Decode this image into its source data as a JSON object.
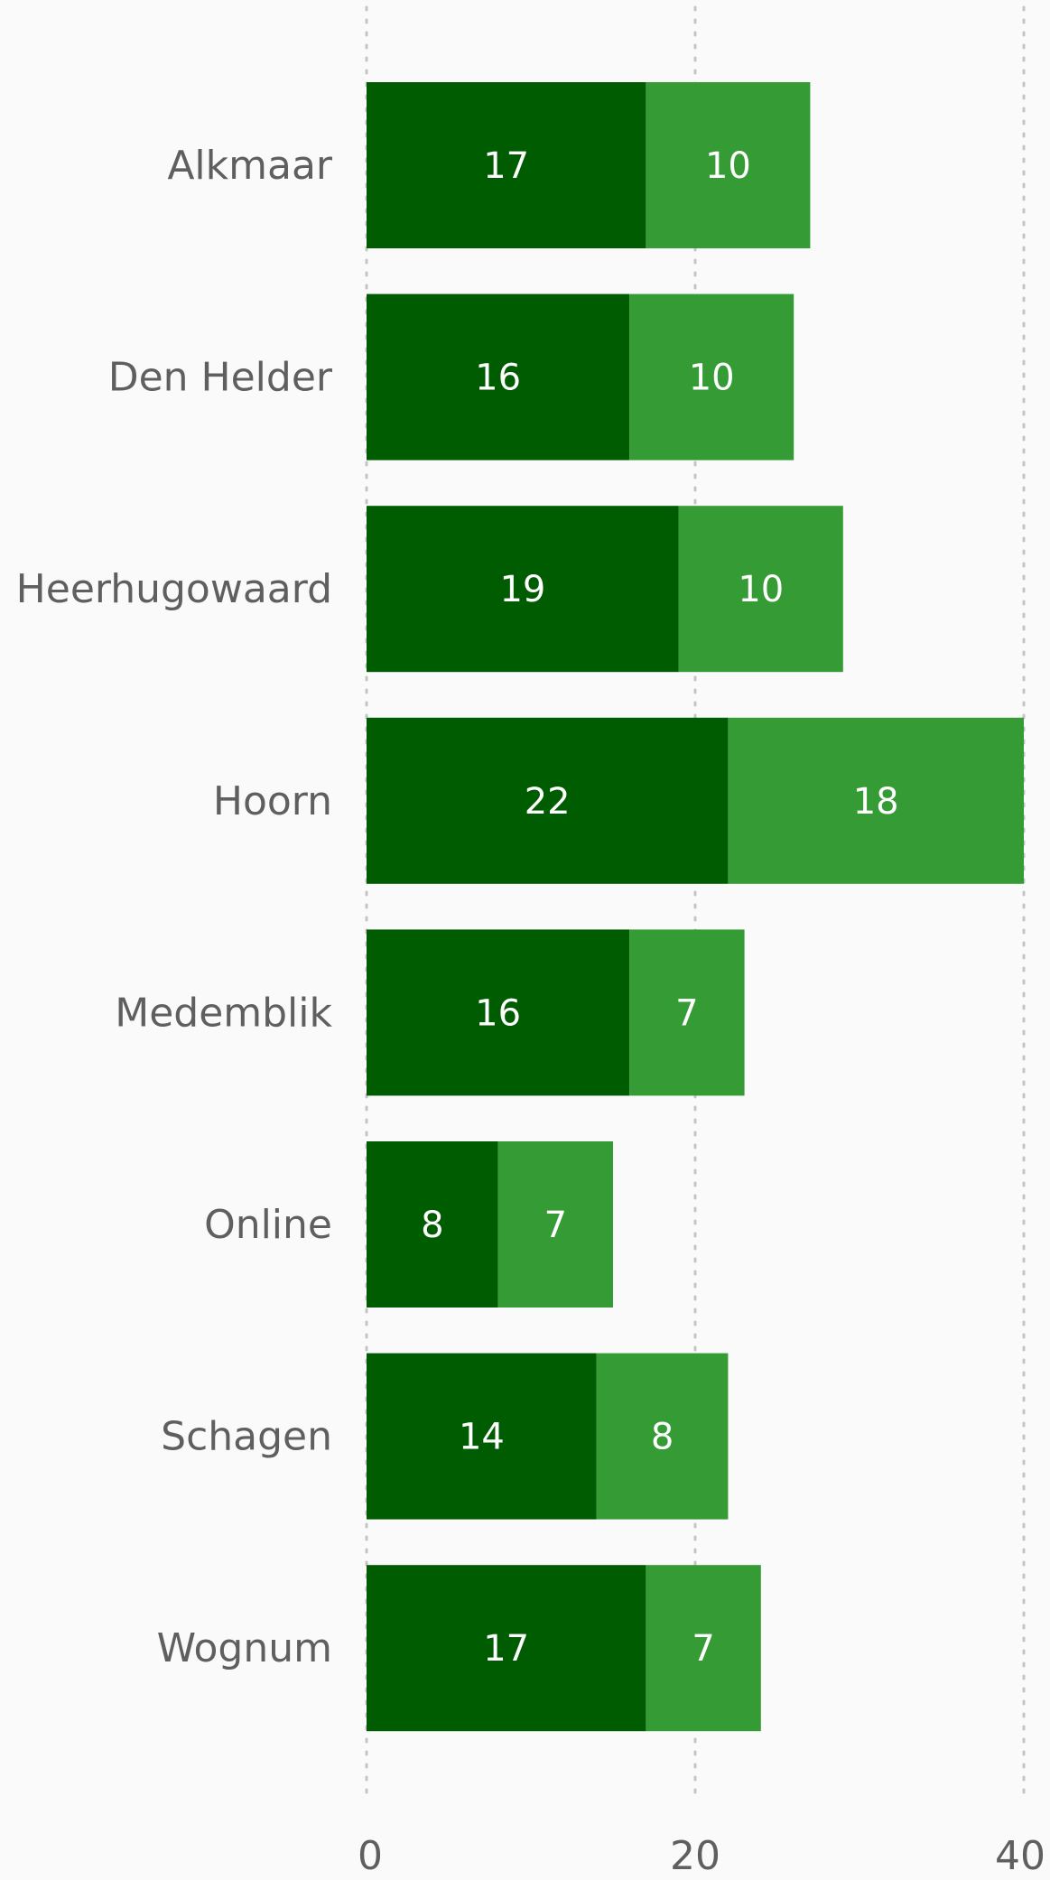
{
  "chart_data": {
    "type": "bar",
    "orientation": "horizontal",
    "stacked": true,
    "title": "",
    "xlabel": "",
    "ylabel": "",
    "categories": [
      "Alkmaar",
      "Den Helder",
      "Heerhugowaard",
      "Hoorn",
      "Medemblik",
      "Online",
      "Schagen",
      "Wognum"
    ],
    "series": [
      {
        "color": "#005c00",
        "values": [
          17,
          16,
          19,
          22,
          16,
          8,
          14,
          17
        ]
      },
      {
        "color": "#359b35",
        "values": [
          10,
          10,
          10,
          18,
          7,
          7,
          8,
          7
        ]
      }
    ],
    "xlim": [
      0,
      40
    ],
    "xticks": [
      0,
      20,
      40
    ],
    "grid": true,
    "legend": "none",
    "data_labels": true
  }
}
